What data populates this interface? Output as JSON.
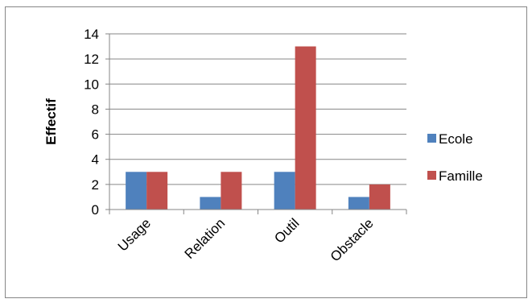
{
  "chart_data": {
    "type": "bar",
    "title": "",
    "xlabel": "",
    "ylabel": "Effectif",
    "ylim": [
      0,
      14
    ],
    "yticks": [
      0,
      2,
      4,
      6,
      8,
      10,
      12,
      14
    ],
    "grid": true,
    "legend_position": "right",
    "categories": [
      "Usage",
      "Relation",
      "Outil",
      "Obstacle"
    ],
    "series": [
      {
        "name": "Ecole",
        "color": "#4F81BD",
        "values": [
          3,
          1,
          3,
          1
        ]
      },
      {
        "name": "Famille",
        "color": "#C0504D",
        "values": [
          3,
          3,
          13,
          2
        ]
      }
    ]
  }
}
